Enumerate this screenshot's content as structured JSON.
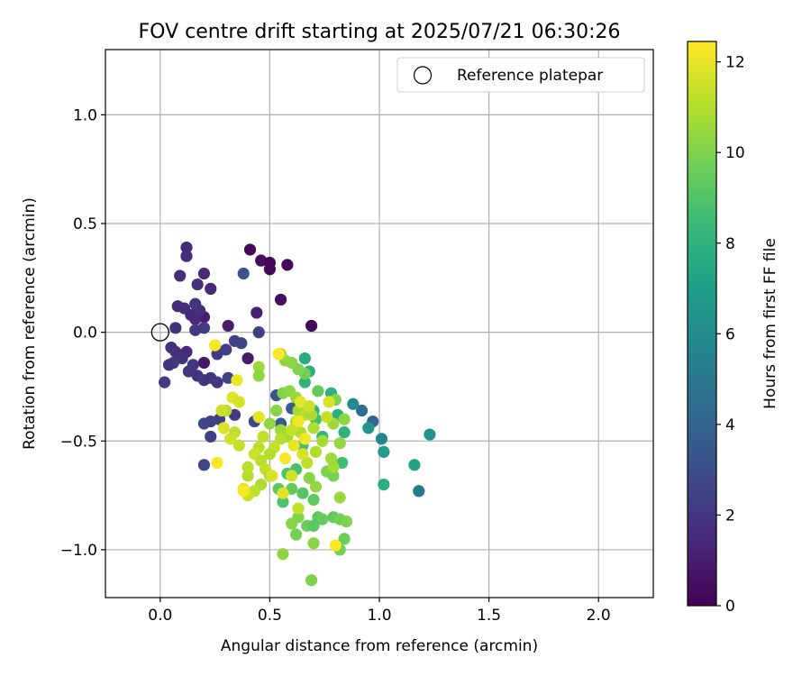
{
  "chart_data": {
    "type": "scatter",
    "title": "FOV centre drift starting at 2025/07/21 06:30:26",
    "xlabel": "Angular distance from reference (arcmin)",
    "ylabel": "Rotation from reference (arcmin)",
    "xlim": [
      -0.25,
      2.25
    ],
    "ylim": [
      -1.22,
      1.3
    ],
    "xticks": [
      "0.0",
      "0.5",
      "1.0",
      "1.5",
      "2.0"
    ],
    "yticks": [
      "−1.0",
      "−0.5",
      "0.0",
      "0.5",
      "1.0"
    ],
    "xtick_values": [
      0.0,
      0.5,
      1.0,
      1.5,
      2.0
    ],
    "ytick_values": [
      -1.0,
      -0.5,
      0.0,
      0.5,
      1.0
    ],
    "grid": true,
    "legend": {
      "location": "top-right",
      "entries": [
        "Reference platepar"
      ]
    },
    "reference_point": {
      "x": 0.0,
      "y": 0.0,
      "label": "Reference platepar"
    },
    "colorbar": {
      "label": "Hours from first FF file",
      "min": 0,
      "max": 12.45,
      "ticks": [
        "0",
        "2",
        "4",
        "6",
        "8",
        "10",
        "12"
      ],
      "tick_values": [
        0,
        2,
        4,
        6,
        8,
        10,
        12
      ],
      "colormap": [
        "#440154",
        "#482878",
        "#3e4989",
        "#31688e",
        "#26828e",
        "#1f9e89",
        "#35b779",
        "#6ece58",
        "#b5de2b",
        "#fde725"
      ]
    },
    "points": [
      [
        0.41,
        0.38,
        0.3
      ],
      [
        0.46,
        0.33,
        0.4
      ],
      [
        0.5,
        0.32,
        0.2
      ],
      [
        0.58,
        0.31,
        0.2
      ],
      [
        0.5,
        0.29,
        0.3
      ],
      [
        0.55,
        0.15,
        0.5
      ],
      [
        0.69,
        0.03,
        0.3
      ],
      [
        0.31,
        0.03,
        1.0
      ],
      [
        0.44,
        0.09,
        1.1
      ],
      [
        0.4,
        -0.12,
        0.9
      ],
      [
        0.2,
        -0.14,
        0.8
      ],
      [
        0.2,
        0.07,
        1.0
      ],
      [
        0.12,
        0.39,
        1.4
      ],
      [
        0.12,
        0.35,
        1.6
      ],
      [
        0.2,
        0.27,
        1.5
      ],
      [
        0.09,
        0.26,
        1.6
      ],
      [
        0.23,
        0.2,
        1.5
      ],
      [
        0.17,
        0.22,
        1.7
      ],
      [
        0.08,
        0.12,
        1.5
      ],
      [
        0.11,
        0.11,
        1.6
      ],
      [
        0.14,
        0.08,
        1.4
      ],
      [
        0.16,
        0.06,
        1.5
      ],
      [
        0.18,
        0.1,
        1.7
      ],
      [
        0.16,
        0.13,
        1.8
      ],
      [
        0.07,
        0.02,
        1.8
      ],
      [
        0.05,
        -0.07,
        1.9
      ],
      [
        0.07,
        -0.09,
        1.7
      ],
      [
        0.12,
        -0.09,
        1.6
      ],
      [
        0.1,
        -0.12,
        1.8
      ],
      [
        0.06,
        -0.14,
        2.0
      ],
      [
        0.04,
        -0.15,
        1.9
      ],
      [
        0.02,
        -0.23,
        2.1
      ],
      [
        0.15,
        -0.15,
        1.9
      ],
      [
        0.13,
        -0.18,
        2.0
      ],
      [
        0.17,
        -0.2,
        1.8
      ],
      [
        0.2,
        -0.22,
        2.0
      ],
      [
        0.23,
        -0.21,
        1.9
      ],
      [
        0.26,
        -0.23,
        2.0
      ],
      [
        0.16,
        0.01,
        2.1
      ],
      [
        0.2,
        0.02,
        2.1
      ],
      [
        0.26,
        -0.1,
        2.2
      ],
      [
        0.3,
        -0.08,
        2.3
      ],
      [
        0.34,
        -0.04,
        2.4
      ],
      [
        0.37,
        -0.05,
        2.5
      ],
      [
        0.45,
        0.0,
        2.4
      ],
      [
        0.34,
        -0.38,
        2.2
      ],
      [
        0.31,
        -0.21,
        2.5
      ],
      [
        0.27,
        -0.4,
        2.3
      ],
      [
        0.23,
        -0.41,
        2.5
      ],
      [
        0.2,
        -0.42,
        2.6
      ],
      [
        0.23,
        -0.48,
        2.4
      ],
      [
        0.2,
        -0.61,
        2.6
      ],
      [
        0.43,
        -0.41,
        2.6
      ],
      [
        0.38,
        0.27,
        3.3
      ],
      [
        0.53,
        -0.29,
        3.3
      ],
      [
        0.55,
        -0.42,
        3.6
      ],
      [
        0.57,
        -0.47,
        3.8
      ],
      [
        0.6,
        -0.35,
        3.7
      ],
      [
        0.97,
        -0.41,
        4.2
      ],
      [
        0.92,
        -0.36,
        4.5
      ],
      [
        0.88,
        -0.33,
        6.0
      ],
      [
        0.95,
        -0.44,
        6.4
      ],
      [
        1.01,
        -0.49,
        5.8
      ],
      [
        1.02,
        -0.55,
        6.8
      ],
      [
        1.18,
        -0.73,
        5.0
      ],
      [
        1.23,
        -0.47,
        6.4
      ],
      [
        1.16,
        -0.61,
        7.2
      ],
      [
        1.02,
        -0.7,
        7.8
      ],
      [
        0.84,
        -0.46,
        8.0
      ],
      [
        0.83,
        -0.6,
        8.6
      ],
      [
        0.81,
        -0.38,
        7.8
      ],
      [
        0.78,
        -0.28,
        8.0
      ],
      [
        0.66,
        -0.12,
        7.6
      ],
      [
        0.68,
        -0.18,
        7.8
      ],
      [
        0.66,
        -0.23,
        8.0
      ],
      [
        0.7,
        -0.36,
        8.2
      ],
      [
        0.71,
        -0.4,
        8.7
      ],
      [
        0.74,
        -0.48,
        8.3
      ],
      [
        0.65,
        -0.52,
        8.6
      ],
      [
        0.62,
        -0.63,
        8.8
      ],
      [
        0.58,
        -0.65,
        9.0
      ],
      [
        0.54,
        -0.72,
        9.2
      ],
      [
        0.56,
        -0.78,
        8.9
      ],
      [
        0.6,
        -0.72,
        9.4
      ],
      [
        0.65,
        -0.74,
        9.1
      ],
      [
        0.7,
        -0.77,
        9.3
      ],
      [
        0.72,
        -0.85,
        9.4
      ],
      [
        0.67,
        -0.89,
        9.6
      ],
      [
        0.7,
        -0.89,
        9.2
      ],
      [
        0.74,
        -0.86,
        9.5
      ],
      [
        0.79,
        -0.85,
        9.4
      ],
      [
        0.82,
        -0.86,
        9.8
      ],
      [
        0.85,
        -0.87,
        10.0
      ],
      [
        0.84,
        -0.95,
        9.6
      ],
      [
        0.82,
        -1.0,
        9.8
      ],
      [
        0.7,
        -0.97,
        10.2
      ],
      [
        0.69,
        -1.14,
        10.0
      ],
      [
        0.56,
        -1.02,
        10.3
      ],
      [
        0.6,
        -0.88,
        10.2
      ],
      [
        0.62,
        -0.93,
        9.8
      ],
      [
        0.63,
        -0.85,
        10.1
      ],
      [
        0.68,
        -0.67,
        10.2
      ],
      [
        0.71,
        -0.71,
        10.4
      ],
      [
        0.76,
        -0.64,
        10.0
      ],
      [
        0.79,
        -0.66,
        9.9
      ],
      [
        0.82,
        -0.76,
        10.5
      ],
      [
        0.79,
        -0.62,
        10.7
      ],
      [
        0.78,
        -0.58,
        10.6
      ],
      [
        0.82,
        -0.51,
        10.4
      ],
      [
        0.79,
        -0.42,
        10.6
      ],
      [
        0.84,
        -0.4,
        10.3
      ],
      [
        0.8,
        -0.31,
        10.0
      ],
      [
        0.72,
        -0.27,
        9.5
      ],
      [
        0.66,
        -0.19,
        9.8
      ],
      [
        0.63,
        -0.17,
        10.0
      ],
      [
        0.6,
        -0.14,
        10.2
      ],
      [
        0.57,
        -0.13,
        10.4
      ],
      [
        0.45,
        -0.16,
        10.6
      ],
      [
        0.45,
        -0.2,
        10.3
      ],
      [
        0.55,
        -0.1,
        10.8
      ],
      [
        0.56,
        -0.28,
        10.1
      ],
      [
        0.59,
        -0.27,
        10.3
      ],
      [
        0.62,
        -0.3,
        10.5
      ],
      [
        0.63,
        -0.36,
        10.7
      ],
      [
        0.53,
        -0.36,
        10.2
      ],
      [
        0.5,
        -0.42,
        10.4
      ],
      [
        0.55,
        -0.45,
        10.6
      ],
      [
        0.58,
        -0.48,
        10.8
      ],
      [
        0.62,
        -0.41,
        11.0
      ],
      [
        0.66,
        -0.38,
        11.2
      ],
      [
        0.69,
        -0.38,
        10.9
      ],
      [
        0.64,
        -0.46,
        11.0
      ],
      [
        0.6,
        -0.45,
        11.3
      ],
      [
        0.55,
        -0.49,
        11.1
      ],
      [
        0.52,
        -0.53,
        11.4
      ],
      [
        0.5,
        -0.56,
        11.0
      ],
      [
        0.47,
        -0.48,
        11.3
      ],
      [
        0.45,
        -0.53,
        11.2
      ],
      [
        0.43,
        -0.56,
        11.5
      ],
      [
        0.46,
        -0.59,
        11.1
      ],
      [
        0.48,
        -0.63,
        11.4
      ],
      [
        0.5,
        -0.66,
        11.0
      ],
      [
        0.46,
        -0.7,
        10.9
      ],
      [
        0.43,
        -0.73,
        11.2
      ],
      [
        0.4,
        -0.75,
        11.5
      ],
      [
        0.38,
        -0.72,
        11.8
      ],
      [
        0.4,
        -0.66,
        11.0
      ],
      [
        0.4,
        -0.62,
        11.2
      ],
      [
        0.36,
        -0.52,
        11.4
      ],
      [
        0.32,
        -0.49,
        11.6
      ],
      [
        0.29,
        -0.44,
        11.8
      ],
      [
        0.34,
        -0.46,
        11.3
      ],
      [
        0.3,
        -0.36,
        11.1
      ],
      [
        0.28,
        -0.36,
        11.5
      ],
      [
        0.33,
        -0.3,
        11.9
      ],
      [
        0.36,
        -0.32,
        11.7
      ],
      [
        0.35,
        -0.22,
        12.1
      ],
      [
        0.25,
        -0.06,
        12.3
      ],
      [
        0.26,
        -0.6,
        12.4
      ],
      [
        0.38,
        -0.73,
        12.4
      ],
      [
        0.8,
        -0.98,
        12.4
      ],
      [
        0.66,
        -0.49,
        12.2
      ],
      [
        0.57,
        -0.58,
        12.3
      ],
      [
        0.54,
        -0.1,
        12.4
      ],
      [
        0.45,
        -0.39,
        12.0
      ],
      [
        0.56,
        -0.74,
        11.9
      ],
      [
        0.6,
        -0.66,
        11.6
      ],
      [
        0.63,
        -0.81,
        11.3
      ],
      [
        0.67,
        -0.6,
        11.2
      ],
      [
        0.71,
        -0.55,
        11.0
      ],
      [
        0.74,
        -0.5,
        10.8
      ],
      [
        0.7,
        -0.44,
        10.9
      ],
      [
        0.76,
        -0.39,
        11.4
      ],
      [
        0.77,
        -0.32,
        11.8
      ],
      [
        0.64,
        -0.32,
        12.0
      ],
      [
        0.63,
        -0.41,
        12.2
      ],
      [
        0.61,
        -0.52,
        12.1
      ],
      [
        0.65,
        -0.56,
        11.7
      ],
      [
        0.68,
        -0.34,
        11.5
      ],
      [
        0.51,
        -0.66,
        11.8
      ]
    ]
  }
}
